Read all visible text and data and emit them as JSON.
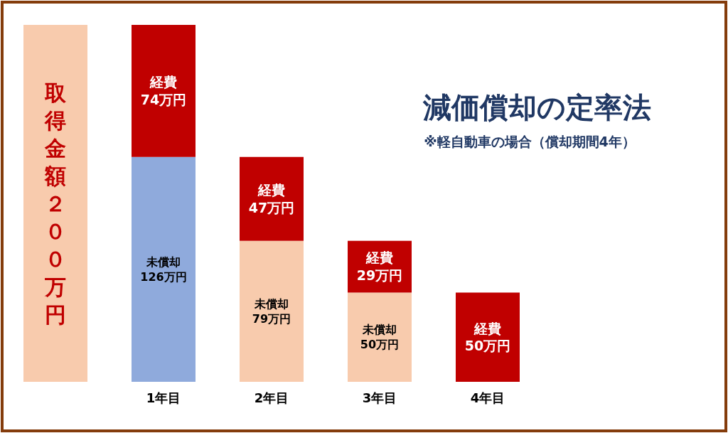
{
  "chart_data": {
    "type": "bar",
    "stacked": true,
    "title": "減価償却の定率法",
    "subtitle": "※軽自動車の場合（償却期間4年）",
    "categories": [
      null,
      "1年目",
      "2年目",
      "3年目",
      "4年目"
    ],
    "series": [
      {
        "colors": [
          "#f8cbad",
          "#8faadc",
          "#f8cbad",
          "#f8cbad",
          null
        ],
        "values": [
          200,
          126,
          79,
          50,
          null
        ],
        "value_labels": [
          "取得金額２００万円",
          "未償却\n126万円",
          "未償却\n79万円",
          "未償却\n50万円",
          null
        ]
      },
      {
        "color": "#c00000",
        "values": [
          null,
          74,
          47,
          29,
          50
        ],
        "value_labels": [
          null,
          "経費\n74万円",
          "経費\n47万円",
          "経費\n29万円",
          "経費\n50万円"
        ]
      }
    ]
  }
}
